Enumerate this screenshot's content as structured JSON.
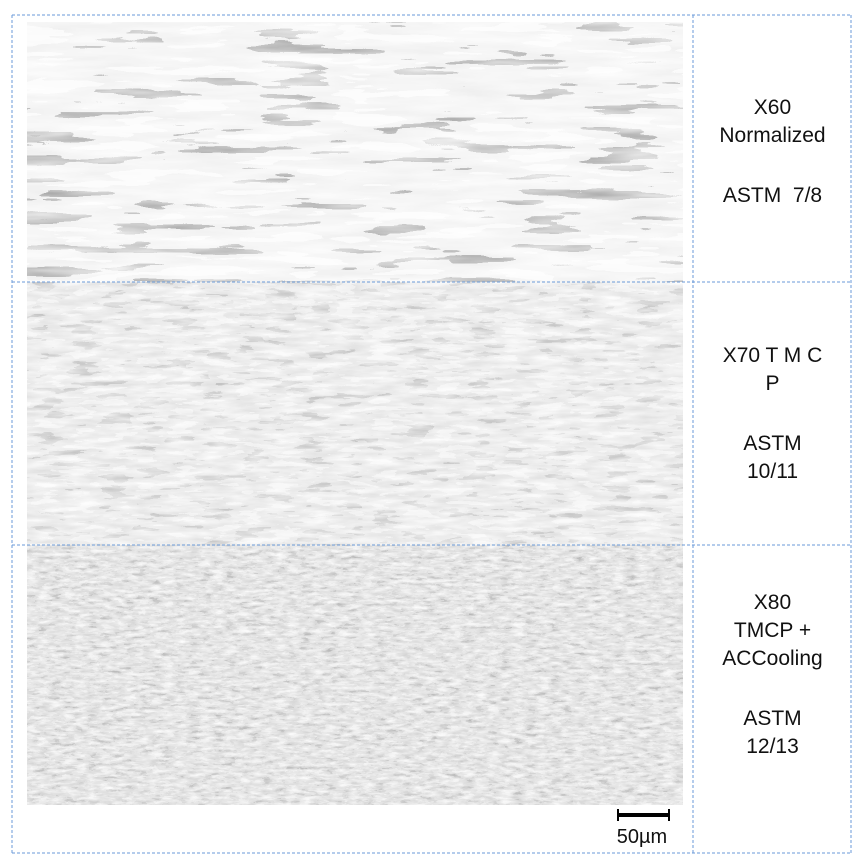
{
  "rows": [
    {
      "name": [
        "X60",
        "Normalized"
      ],
      "grade": [
        "ASTM  7/8"
      ]
    },
    {
      "name": [
        "X70 T M C",
        "P"
      ],
      "grade": [
        "ASTM",
        "10/11"
      ]
    },
    {
      "name": [
        "X80",
        "TMCP +",
        "ACCooling"
      ],
      "grade": [
        "ASTM",
        "12/13"
      ]
    }
  ],
  "scale_bar": "50µm"
}
